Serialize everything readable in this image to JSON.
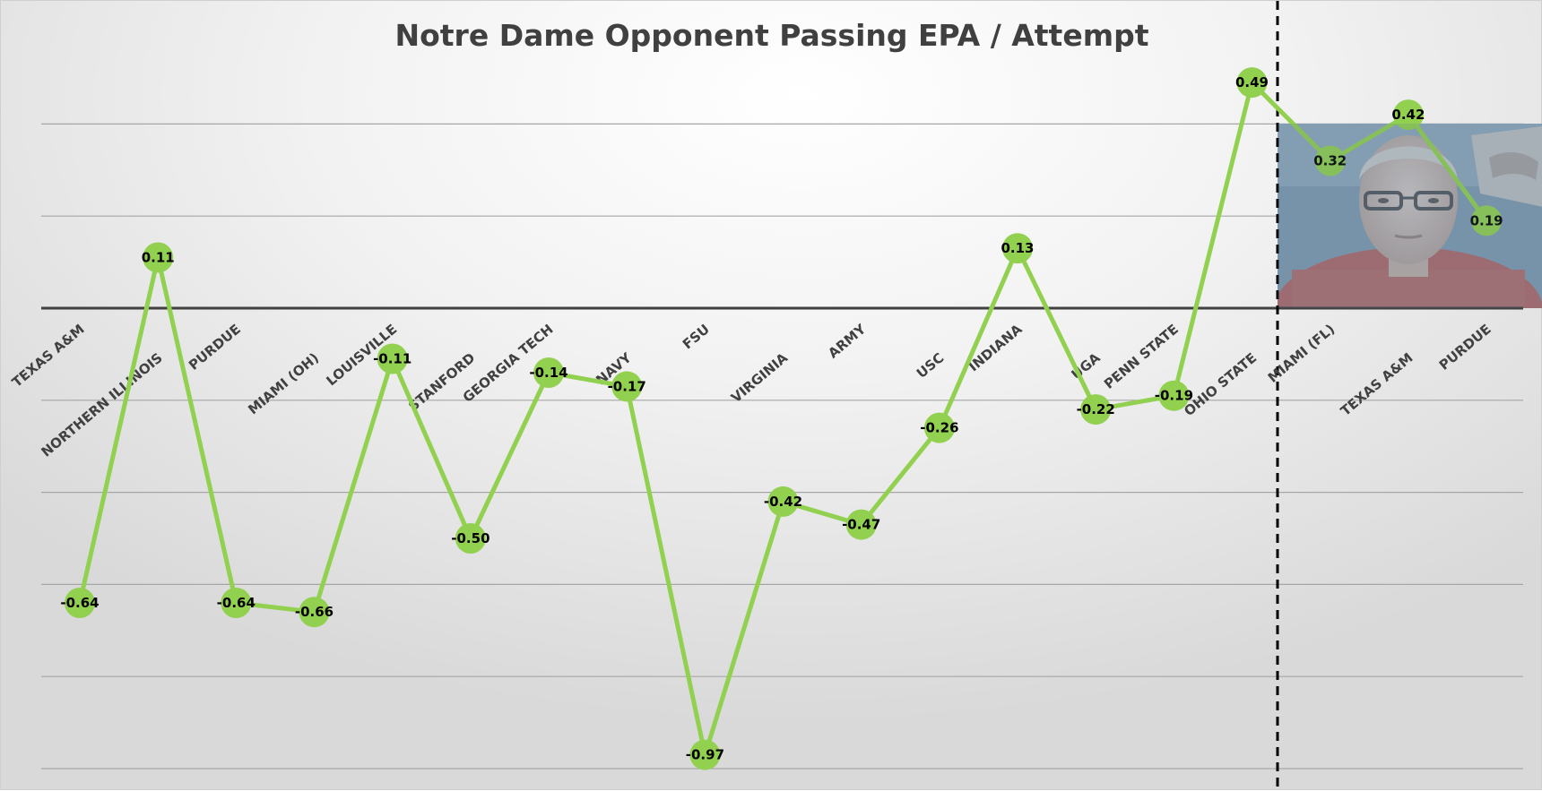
{
  "chart_data": {
    "type": "line",
    "title": "Notre Dame Opponent Passing EPA / Attempt",
    "xlabel": "",
    "ylabel": "",
    "categories": [
      "TEXAS A&M",
      "NORTHERN ILLINOIS",
      "PURDUE",
      "MIAMI (OH)",
      "LOUISVILLE",
      "STANFORD",
      "GEORGIA TECH",
      "NAVY",
      "FSU",
      "VIRGINIA",
      "ARMY",
      "USC",
      "INDIANA",
      "UGA",
      "PENN STATE",
      "OHIO STATE",
      "MIAMI (FL)",
      "TEXAS A&M",
      "PURDUE"
    ],
    "series": [
      {
        "values": [
          -0.64,
          0.11,
          -0.64,
          -0.66,
          -0.11,
          -0.5,
          -0.14,
          -0.17,
          -0.97,
          -0.42,
          -0.47,
          -0.26,
          0.13,
          -0.22,
          -0.19,
          0.49,
          0.32,
          0.42,
          0.19
        ],
        "labels": [
          "-0.64",
          "0.11",
          "-0.64",
          "-0.66",
          "-0.11",
          "-0.50",
          "-0.14",
          "-0.17",
          "-0.97",
          "-0.42",
          "-0.47",
          "-0.26",
          "0.13",
          "-0.22",
          "-0.19",
          "0.49",
          "0.32",
          "0.42",
          "0.19"
        ]
      }
    ],
    "ylim": [
      -1.2,
      0.6
    ],
    "grid": true,
    "divider_after_category": "OHIO STATE",
    "colors": {
      "line": "#92d050",
      "marker": "#92d050",
      "title": "#404040",
      "tick_label": "#404040",
      "data_label": "#000000",
      "divider": "#000000",
      "zero_line": "#404040",
      "gridline": "#a6a6a6"
    },
    "inset_image": "webcam-person-photo"
  }
}
